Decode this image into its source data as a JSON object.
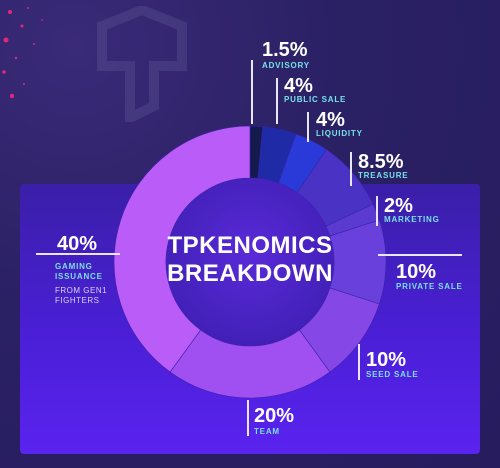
{
  "chart_data": {
    "type": "pie",
    "title": "TPKENOMICS BREAKDOWN",
    "slices": [
      {
        "label": "ADVISORY",
        "value": 1.5,
        "display": "1.5%",
        "color": "#141a4e"
      },
      {
        "label": "PUBLIC SALE",
        "value": 4,
        "display": "4%",
        "color": "#1e2aa6"
      },
      {
        "label": "LIQUIDITY",
        "value": 4,
        "display": "4%",
        "color": "#2a3ad8"
      },
      {
        "label": "TREASURE",
        "value": 8.5,
        "display": "8.5%",
        "color": "#4a33c4"
      },
      {
        "label": "MARKETING",
        "value": 2,
        "display": "2%",
        "color": "#5a3ad0"
      },
      {
        "label": "PRIVATE SALE",
        "value": 10,
        "display": "10%",
        "color": "#6a40dc"
      },
      {
        "label": "SEED SALE",
        "value": 10,
        "display": "10%",
        "color": "#8548e6"
      },
      {
        "label": "TEAM",
        "value": 20,
        "display": "20%",
        "color": "#a04ff0"
      },
      {
        "label": "GAMING ISSUANCE",
        "value": 40,
        "display": "40%",
        "note_lines": [
          "FROM GEN1",
          "FIGHTERS"
        ],
        "color": "#b95cf8"
      }
    ]
  },
  "colors": {
    "accent_label": "#78e0e8",
    "background": "#2a2064",
    "panel": "#4a1fd6"
  }
}
